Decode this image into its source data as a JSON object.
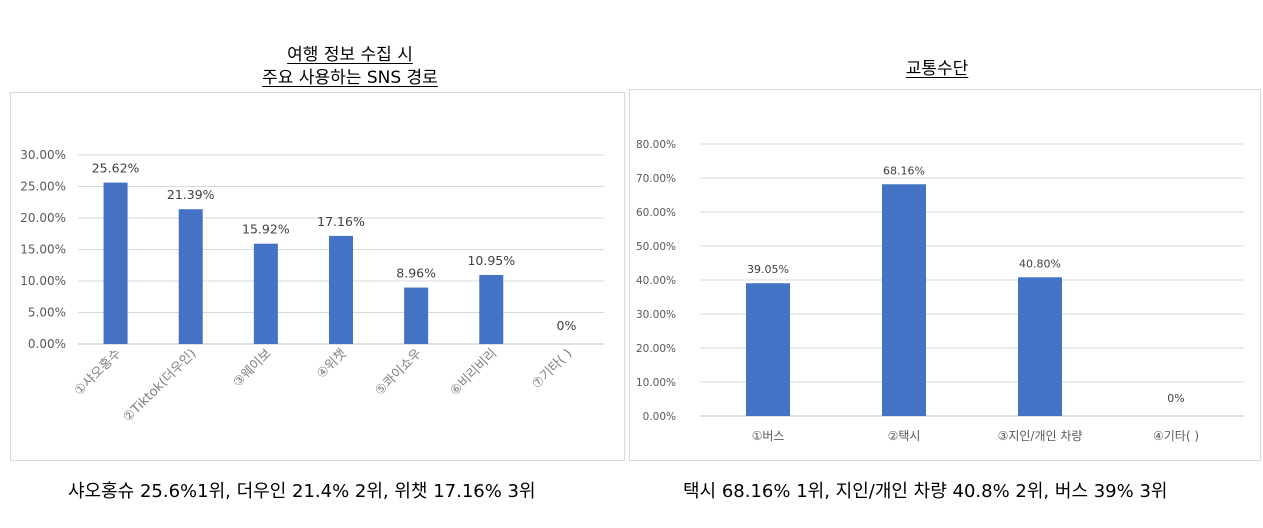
{
  "chart_data": [
    {
      "type": "bar",
      "title": "여행 정보 수집 시\n주요 사용하는 SNS 경로",
      "title_lines": [
        "여행 정보 수집 시",
        "주요 사용하는 SNS 경로"
      ],
      "categories": [
        "①샤오홍수",
        "②Tiktok(더우인)",
        "③웨이보",
        "④위챗",
        "⑤콰이쇼우",
        "⑥비리비리",
        "⑦기타( )"
      ],
      "values": [
        25.62,
        21.39,
        15.92,
        17.16,
        8.96,
        10.95,
        0
      ],
      "data_labels": [
        "25.62%",
        "21.39%",
        "15.92%",
        "17.16%",
        "8.96%",
        "10.95%",
        "0%"
      ],
      "y_ticks": [
        "0.00%",
        "5.00%",
        "10.00%",
        "15.00%",
        "20.00%",
        "25.00%",
        "30.00%"
      ],
      "ylim": [
        0,
        30
      ],
      "grid": true,
      "bar_color": "#4472c4",
      "caption": "샤오홍슈 25.6%1위, 더우인 21.4% 2위, 위챗 17.16% 3위"
    },
    {
      "type": "bar",
      "title": "교통수단",
      "title_lines": [
        "교통수단"
      ],
      "categories": [
        "①버스",
        "②택시",
        "③지인/개인 차량",
        "④기타( )"
      ],
      "values": [
        39.05,
        68.16,
        40.8,
        0
      ],
      "data_labels": [
        "39.05%",
        "68.16%",
        "40.80%",
        "0%"
      ],
      "y_ticks": [
        "0.00%",
        "10.00%",
        "20.00%",
        "30.00%",
        "40.00%",
        "50.00%",
        "60.00%",
        "70.00%",
        "80.00%"
      ],
      "ylim": [
        0,
        80
      ],
      "grid": true,
      "bar_color": "#4472c4",
      "caption": "택시 68.16% 1위, 지인/개인 차량 40.8% 2위, 버스 39% 3위"
    }
  ]
}
